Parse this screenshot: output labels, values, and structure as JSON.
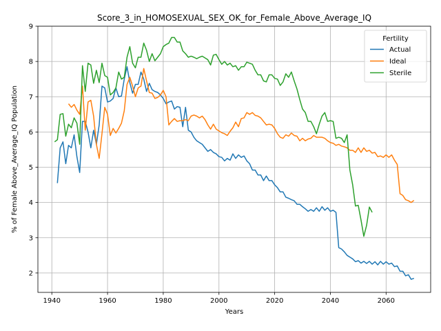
{
  "chart_data": {
    "type": "line",
    "title": "Score_3_in_HOMOSEXUAL_SEX_OK_for_Female_Above_Average_IQ",
    "xlabel": "Years",
    "ylabel": "% of Female Above_Average_IQ Population",
    "xlim": [
      1935,
      2076
    ],
    "ylim": [
      1.45,
      9.0
    ],
    "xticks": [
      1940,
      1960,
      1980,
      2000,
      2020,
      2040,
      2060
    ],
    "yticks": [
      2,
      3,
      4,
      5,
      6,
      7,
      8,
      9
    ],
    "grid": true,
    "legend": {
      "title": "Fertility",
      "placement": "top-right"
    },
    "series": [
      {
        "name": "Actual",
        "color": "#1f77b4",
        "x": [
          1942,
          1943,
          1944,
          1945,
          1946,
          1947,
          1948,
          1949,
          1950,
          1951,
          1952,
          1953,
          1954,
          1955,
          1956,
          1957,
          1958,
          1959,
          1960,
          1961,
          1962,
          1963,
          1964,
          1965,
          1966,
          1967,
          1968,
          1969,
          1970,
          1971,
          1972,
          1973,
          1974,
          1975,
          1976,
          1977,
          1978,
          1979,
          1980,
          1981,
          1982,
          1983,
          1984,
          1985,
          1986,
          1987,
          1988,
          1989,
          1990,
          1991,
          1992,
          1993,
          1994,
          1995,
          1996,
          1997,
          1998,
          1999,
          2000,
          2001,
          2002,
          2003,
          2004,
          2005,
          2006,
          2007,
          2008,
          2009,
          2010,
          2011,
          2012,
          2013,
          2014,
          2015,
          2016,
          2017,
          2018,
          2019,
          2020,
          2021,
          2022,
          2023,
          2024,
          2025,
          2026,
          2027,
          2028,
          2029,
          2030,
          2031,
          2032,
          2033,
          2034,
          2035,
          2036,
          2037,
          2038,
          2039,
          2040,
          2041,
          2042,
          2043,
          2044,
          2045,
          2046,
          2047,
          2048,
          2049,
          2050,
          2051,
          2052,
          2053,
          2054,
          2055,
          2056,
          2057,
          2058,
          2059,
          2060,
          2061,
          2062,
          2063,
          2064,
          2065,
          2066,
          2067,
          2068,
          2069,
          2070
        ],
        "values": [
          4.55,
          5.55,
          5.72,
          5.1,
          5.62,
          5.55,
          5.92,
          5.3,
          4.85,
          6.3,
          6.3,
          6.0,
          5.55,
          6.05,
          5.65,
          6.2,
          7.3,
          7.25,
          6.85,
          6.88,
          6.95,
          7.25,
          7.0,
          7.02,
          7.5,
          7.85,
          7.4,
          7.1,
          7.35,
          7.35,
          7.7,
          7.5,
          7.15,
          7.38,
          7.2,
          7.15,
          7.12,
          7.05,
          6.95,
          6.8,
          6.85,
          6.88,
          6.65,
          6.72,
          6.7,
          6.15,
          6.7,
          6.05,
          6.0,
          5.85,
          5.75,
          5.7,
          5.65,
          5.55,
          5.45,
          5.5,
          5.42,
          5.38,
          5.3,
          5.28,
          5.18,
          5.25,
          5.2,
          5.38,
          5.25,
          5.35,
          5.28,
          5.32,
          5.18,
          5.1,
          4.92,
          4.92,
          4.78,
          4.78,
          4.62,
          4.75,
          4.62,
          4.62,
          4.5,
          4.42,
          4.3,
          4.3,
          4.15,
          4.12,
          4.08,
          4.05,
          3.95,
          3.95,
          3.88,
          3.82,
          3.75,
          3.8,
          3.75,
          3.85,
          3.75,
          3.88,
          3.78,
          3.85,
          3.75,
          3.78,
          3.72,
          2.72,
          2.68,
          2.6,
          2.5,
          2.45,
          2.4,
          2.32,
          2.35,
          2.28,
          2.33,
          2.27,
          2.33,
          2.25,
          2.32,
          2.23,
          2.33,
          2.25,
          2.32,
          2.25,
          2.28,
          2.18,
          2.2,
          2.05,
          2.05,
          1.92,
          1.95,
          1.82,
          1.85
        ]
      },
      {
        "name": "Ideal",
        "color": "#ff7f0e",
        "x": [
          1946,
          1947,
          1948,
          1949,
          1950,
          1951,
          1952,
          1953,
          1954,
          1955,
          1956,
          1957,
          1958,
          1959,
          1960,
          1961,
          1962,
          1963,
          1964,
          1965,
          1966,
          1967,
          1968,
          1969,
          1970,
          1971,
          1972,
          1973,
          1974,
          1975,
          1976,
          1977,
          1978,
          1979,
          1980,
          1981,
          1982,
          1983,
          1984,
          1985,
          1986,
          1987,
          1988,
          1989,
          1990,
          1991,
          1992,
          1993,
          1994,
          1995,
          1996,
          1997,
          1998,
          1999,
          2000,
          2001,
          2002,
          2003,
          2004,
          2005,
          2006,
          2007,
          2008,
          2009,
          2010,
          2011,
          2012,
          2013,
          2014,
          2015,
          2016,
          2017,
          2018,
          2019,
          2020,
          2021,
          2022,
          2023,
          2024,
          2025,
          2026,
          2027,
          2028,
          2029,
          2030,
          2031,
          2032,
          2033,
          2034,
          2035,
          2036,
          2037,
          2038,
          2039,
          2040,
          2041,
          2042,
          2043,
          2044,
          2045,
          2046,
          2047,
          2048,
          2049,
          2050,
          2051,
          2052,
          2053,
          2054,
          2055,
          2056,
          2057,
          2058,
          2059,
          2060,
          2061,
          2062,
          2063,
          2064,
          2065,
          2066,
          2067,
          2068,
          2069,
          2070
        ],
        "values": [
          6.8,
          6.7,
          6.78,
          6.62,
          6.5,
          7.3,
          6.05,
          6.85,
          6.9,
          6.45,
          5.65,
          5.25,
          5.95,
          6.7,
          6.5,
          5.9,
          6.1,
          5.97,
          6.1,
          6.25,
          6.6,
          7.35,
          7.55,
          7.3,
          7.0,
          7.25,
          7.3,
          7.8,
          7.45,
          7.12,
          7.1,
          6.95,
          6.98,
          7.05,
          7.18,
          7.0,
          6.2,
          6.3,
          6.38,
          6.3,
          6.32,
          6.32,
          6.35,
          6.32,
          6.45,
          6.48,
          6.45,
          6.4,
          6.45,
          6.35,
          6.2,
          6.08,
          6.22,
          6.08,
          6.03,
          5.98,
          5.95,
          5.9,
          6.02,
          6.12,
          6.28,
          6.15,
          6.38,
          6.4,
          6.55,
          6.5,
          6.55,
          6.47,
          6.45,
          6.4,
          6.3,
          6.2,
          6.22,
          6.2,
          6.1,
          5.95,
          5.85,
          5.82,
          5.92,
          5.88,
          5.97,
          5.9,
          5.88,
          5.75,
          5.82,
          5.75,
          5.8,
          5.82,
          5.9,
          5.85,
          5.85,
          5.85,
          5.82,
          5.75,
          5.7,
          5.68,
          5.62,
          5.65,
          5.6,
          5.58,
          5.55,
          5.48,
          5.48,
          5.42,
          5.55,
          5.42,
          5.55,
          5.45,
          5.48,
          5.4,
          5.42,
          5.3,
          5.32,
          5.28,
          5.35,
          5.28,
          5.35,
          5.2,
          5.08,
          4.25,
          4.2,
          4.08,
          4.05,
          4.0,
          4.06
        ]
      },
      {
        "name": "Sterile",
        "color": "#2ca02c",
        "x": [
          1941,
          1942,
          1943,
          1944,
          1945,
          1946,
          1947,
          1948,
          1949,
          1950,
          1951,
          1952,
          1953,
          1954,
          1955,
          1956,
          1957,
          1958,
          1959,
          1960,
          1961,
          1962,
          1963,
          1964,
          1965,
          1966,
          1967,
          1968,
          1969,
          1970,
          1971,
          1972,
          1973,
          1974,
          1975,
          1976,
          1977,
          1978,
          1979,
          1980,
          1981,
          1982,
          1983,
          1984,
          1985,
          1986,
          1987,
          1988,
          1989,
          1990,
          1991,
          1992,
          1993,
          1994,
          1995,
          1996,
          1997,
          1998,
          1999,
          2000,
          2001,
          2002,
          2003,
          2004,
          2005,
          2006,
          2007,
          2008,
          2009,
          2010,
          2011,
          2012,
          2013,
          2014,
          2015,
          2016,
          2017,
          2018,
          2019,
          2020,
          2021,
          2022,
          2023,
          2024,
          2025,
          2026,
          2027,
          2028,
          2029,
          2030,
          2031,
          2032,
          2033,
          2034,
          2035,
          2036,
          2037,
          2038,
          2039,
          2040,
          2041,
          2042,
          2043,
          2044,
          2045,
          2046,
          2047,
          2048,
          2049,
          2050,
          2051,
          2052,
          2053,
          2054,
          2055
        ],
        "values": [
          5.72,
          5.78,
          6.5,
          6.52,
          5.88,
          6.22,
          6.12,
          6.4,
          6.25,
          5.65,
          7.88,
          7.15,
          7.95,
          7.9,
          7.38,
          7.75,
          7.4,
          7.95,
          7.6,
          7.55,
          7.05,
          7.12,
          7.25,
          7.7,
          7.5,
          7.55,
          8.12,
          8.42,
          7.95,
          7.82,
          8.12,
          8.12,
          8.52,
          8.32,
          8.0,
          8.22,
          8.02,
          8.12,
          8.22,
          8.42,
          8.48,
          8.52,
          8.68,
          8.68,
          8.55,
          8.55,
          8.3,
          8.22,
          8.12,
          8.15,
          8.12,
          8.08,
          8.12,
          8.15,
          8.1,
          8.05,
          7.9,
          8.18,
          8.2,
          8.05,
          7.92,
          8.0,
          7.9,
          7.95,
          7.85,
          7.88,
          7.75,
          7.85,
          7.85,
          7.98,
          7.95,
          7.92,
          7.75,
          7.62,
          7.62,
          7.45,
          7.42,
          7.62,
          7.62,
          7.52,
          7.5,
          7.32,
          7.42,
          7.65,
          7.55,
          7.7,
          7.45,
          7.22,
          6.92,
          6.65,
          6.55,
          6.3,
          6.3,
          6.15,
          5.95,
          6.22,
          6.45,
          6.55,
          6.3,
          6.32,
          6.3,
          5.82,
          5.85,
          5.82,
          5.7,
          5.92,
          4.92,
          4.5,
          3.9,
          3.92,
          3.5,
          3.04,
          3.35,
          3.87,
          3.72
        ]
      }
    ]
  }
}
